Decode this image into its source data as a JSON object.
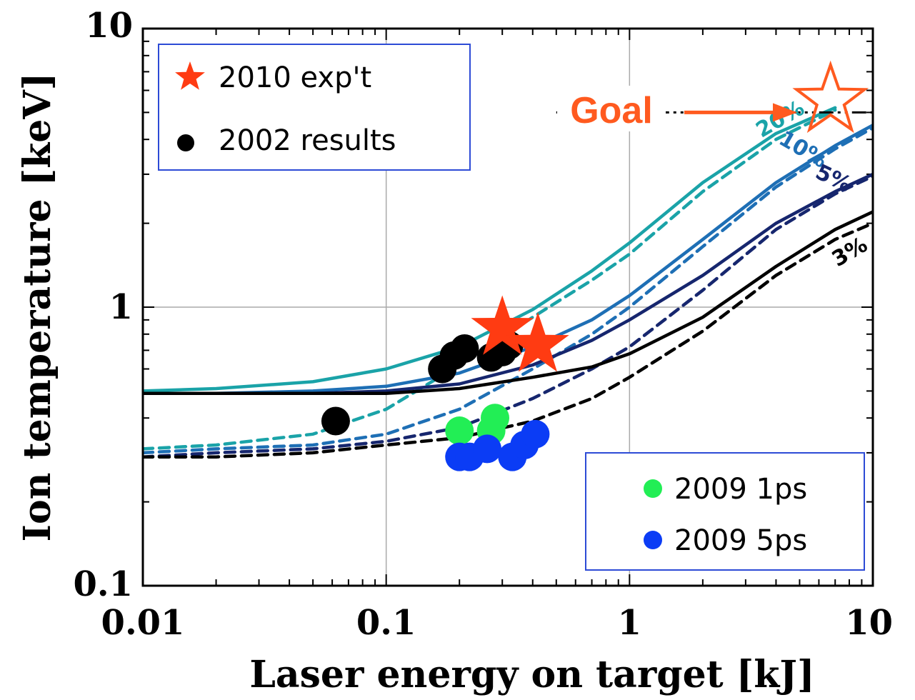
{
  "chart_data": {
    "type": "scatter",
    "xlabel": "Laser energy on target [kJ]",
    "ylabel": "Ion temperature [keV]",
    "xscale": "log",
    "yscale": "log",
    "xlim": [
      0.01,
      10
    ],
    "ylim": [
      0.1,
      10
    ],
    "x_tick_labels": [
      "0.01",
      "0.1",
      "1",
      "10"
    ],
    "x_tick_values": [
      0.01,
      0.1,
      1,
      10
    ],
    "y_tick_labels": [
      "0.1",
      "1",
      "10"
    ],
    "y_tick_values": [
      0.1,
      1,
      10
    ],
    "grid": "major",
    "curves": [
      {
        "name": "20%",
        "color": "#1aa3a8",
        "style": "solid",
        "x": [
          0.01,
          0.02,
          0.05,
          0.1,
          0.2,
          0.4,
          0.7,
          1,
          2,
          4,
          7
        ],
        "y": [
          0.5,
          0.51,
          0.54,
          0.6,
          0.72,
          0.98,
          1.35,
          1.7,
          2.8,
          4.2,
          5.2
        ]
      },
      {
        "name": "20%",
        "color": "#1aa3a8",
        "style": "dashed",
        "x": [
          0.01,
          0.02,
          0.05,
          0.1,
          0.2,
          0.4,
          0.7,
          1,
          2,
          4,
          7
        ],
        "y": [
          0.31,
          0.32,
          0.35,
          0.43,
          0.62,
          0.92,
          1.25,
          1.55,
          2.6,
          4.0,
          5.1
        ]
      },
      {
        "name": "10%",
        "color": "#1e6fb5",
        "style": "solid",
        "x": [
          0.01,
          0.02,
          0.05,
          0.1,
          0.2,
          0.4,
          0.7,
          1,
          2,
          4,
          7,
          10
        ],
        "y": [
          0.49,
          0.49,
          0.5,
          0.52,
          0.58,
          0.72,
          0.9,
          1.1,
          1.75,
          2.8,
          3.8,
          4.5
        ]
      },
      {
        "name": "10%",
        "color": "#1e6fb5",
        "style": "dashed",
        "x": [
          0.01,
          0.02,
          0.05,
          0.1,
          0.2,
          0.4,
          0.7,
          1,
          2,
          4,
          7,
          10
        ],
        "y": [
          0.3,
          0.31,
          0.32,
          0.35,
          0.43,
          0.6,
          0.8,
          1.0,
          1.65,
          2.7,
          3.7,
          4.4
        ]
      },
      {
        "name": "5%",
        "color": "#16266e",
        "style": "solid",
        "x": [
          0.01,
          0.02,
          0.05,
          0.1,
          0.2,
          0.4,
          0.7,
          1,
          2,
          4,
          7,
          10
        ],
        "y": [
          0.49,
          0.49,
          0.49,
          0.5,
          0.53,
          0.62,
          0.76,
          0.9,
          1.3,
          2.0,
          2.6,
          3.0
        ]
      },
      {
        "name": "5%",
        "color": "#16266e",
        "style": "dashed",
        "x": [
          0.01,
          0.02,
          0.05,
          0.1,
          0.2,
          0.4,
          0.7,
          1,
          2,
          4,
          7,
          10
        ],
        "y": [
          0.29,
          0.3,
          0.31,
          0.33,
          0.37,
          0.47,
          0.6,
          0.72,
          1.15,
          1.9,
          2.55,
          2.95
        ]
      },
      {
        "name": "3%",
        "color": "#000000",
        "style": "solid",
        "x": [
          0.01,
          0.02,
          0.05,
          0.1,
          0.2,
          0.4,
          0.7,
          1,
          2,
          4,
          7,
          10
        ],
        "y": [
          0.49,
          0.49,
          0.49,
          0.49,
          0.51,
          0.56,
          0.61,
          0.68,
          0.92,
          1.4,
          1.9,
          2.2
        ]
      },
      {
        "name": "3%",
        "color": "#000000",
        "style": "dashed",
        "x": [
          0.01,
          0.02,
          0.05,
          0.1,
          0.2,
          0.4,
          0.7,
          1,
          2,
          4,
          7,
          10
        ],
        "y": [
          0.29,
          0.29,
          0.3,
          0.32,
          0.34,
          0.39,
          0.47,
          0.56,
          0.82,
          1.3,
          1.75,
          2.0
        ]
      }
    ],
    "curve_labels": [
      {
        "text": "20%",
        "color": "#1aa3a8",
        "x": 4.3,
        "y": 4.5,
        "angle": -30
      },
      {
        "text": "10%",
        "color": "#1e6fb5",
        "x": 5.0,
        "y": 3.5,
        "angle": 30
      },
      {
        "text": "5%",
        "color": "#16266e",
        "x": 6.7,
        "y": 2.75,
        "angle": 25
      },
      {
        "text": "3%",
        "color": "#000000",
        "x": 8.3,
        "y": 1.5,
        "angle": -30
      }
    ],
    "series": [
      {
        "name": "2010 exp't",
        "marker": "star",
        "color": "#ff3b12",
        "x": [
          0.3,
          0.42
        ],
        "y": [
          0.84,
          0.73
        ]
      },
      {
        "name": "2002 results",
        "marker": "circle",
        "color": "#000000",
        "x": [
          0.062,
          0.17,
          0.19,
          0.21,
          0.27,
          0.3,
          0.32
        ],
        "y": [
          0.39,
          0.6,
          0.67,
          0.71,
          0.66,
          0.69,
          0.73
        ]
      },
      {
        "name": "2009 1ps",
        "marker": "circle",
        "color": "#22ee55",
        "x": [
          0.2,
          0.27,
          0.28
        ],
        "y": [
          0.36,
          0.36,
          0.4
        ]
      },
      {
        "name": "2009 5ps",
        "marker": "circle",
        "color": "#0b3cf5",
        "x": [
          0.2,
          0.22,
          0.26,
          0.33,
          0.37,
          0.41
        ],
        "y": [
          0.29,
          0.29,
          0.31,
          0.29,
          0.32,
          0.35
        ]
      }
    ],
    "reference_line": {
      "y": 5,
      "x_start": 0.5,
      "x_end": 10,
      "style": "dash-dot",
      "color": "#000000"
    },
    "goal": {
      "label": "Goal",
      "color": "#ff5a1f",
      "marker": "open-star",
      "x": 6.7,
      "y": 5.2
    },
    "legends": [
      {
        "position": "top-left",
        "entries": [
          {
            "text": "2010 exp't",
            "marker": "star",
            "color": "#ff3b12"
          },
          {
            "text": "2002 results",
            "marker": "circle",
            "color": "#000000"
          }
        ]
      },
      {
        "position": "bottom-right",
        "entries": [
          {
            "text": "2009  1ps",
            "marker": "circle",
            "color": "#22ee55"
          },
          {
            "text": "2009  5ps",
            "marker": "circle",
            "color": "#0b3cf5"
          }
        ]
      }
    ]
  }
}
